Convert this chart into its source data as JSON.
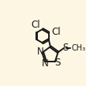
{
  "bg_color": "#fdf6e3",
  "bond_color": "#1a1a1a",
  "line_width": 1.4,
  "font_size": 8.5,
  "fig_size": [
    1.09,
    1.09
  ],
  "dpi": 100,
  "xlim": [
    0,
    10
  ],
  "ylim": [
    0,
    10
  ]
}
